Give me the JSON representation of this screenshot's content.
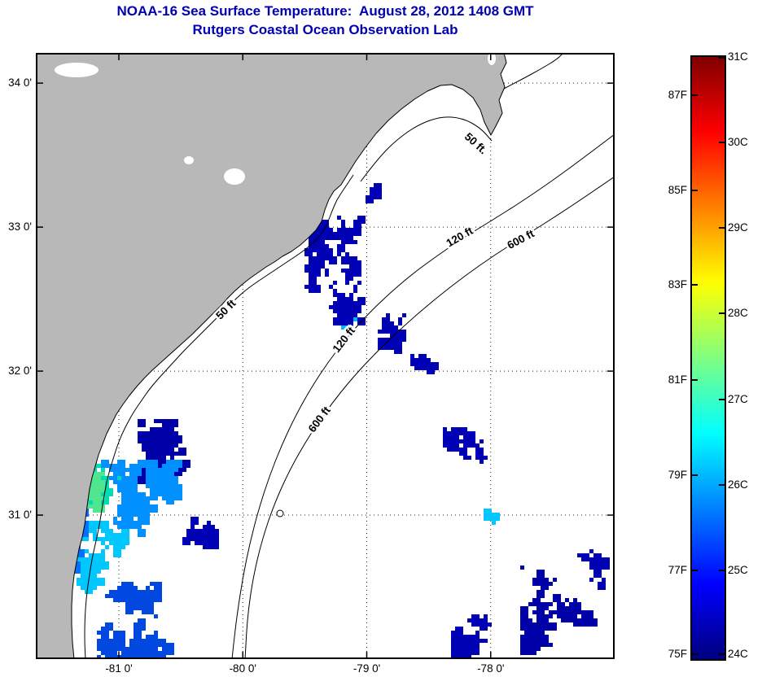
{
  "chart_data": {
    "type": "heatmap",
    "title": "NOAA-16 Sea Surface Temperature:  August 28, 2012 1408 GMT",
    "subtitle": "Rutgers Coastal Ocean Observation Lab",
    "x_axis": {
      "tick_labels": [
        "-81 0'",
        "-80 0'",
        "-79 0'",
        "-78 0'"
      ],
      "tick_lon": [
        -81,
        -80,
        -79,
        -78
      ],
      "lon_range": [
        -81.67,
        -77.0
      ]
    },
    "y_axis": {
      "tick_labels": [
        "34 0'",
        "33 0'",
        "32 0'",
        "31 0'"
      ],
      "tick_lat": [
        34,
        33,
        32,
        31
      ],
      "lat_range": [
        30.0,
        34.21
      ]
    },
    "colorbar": {
      "colormap": "jet",
      "celsius_range": [
        24,
        31
      ],
      "c_ticks": [
        {
          "label": "31C",
          "c": 31
        },
        {
          "label": "30C",
          "c": 30
        },
        {
          "label": "29C",
          "c": 29
        },
        {
          "label": "28C",
          "c": 28
        },
        {
          "label": "27C",
          "c": 27
        },
        {
          "label": "26C",
          "c": 26
        },
        {
          "label": "25C",
          "c": 25
        },
        {
          "label": "24C",
          "c": 24
        }
      ],
      "f_ticks": [
        {
          "label": "87F",
          "f": 87
        },
        {
          "label": "85F",
          "f": 85
        },
        {
          "label": "83F",
          "f": 83
        },
        {
          "label": "81F",
          "f": 81
        },
        {
          "label": "79F",
          "f": 79
        },
        {
          "label": "77F",
          "f": 77
        },
        {
          "label": "75F",
          "f": 75
        }
      ],
      "jet_stops": [
        "#7f0000",
        "#ff0000",
        "#ff8000",
        "#ffff00",
        "#80ff80",
        "#00ffff",
        "#0080ff",
        "#0000ff",
        "#00007f"
      ]
    },
    "depth_contours": [
      {
        "label": "50 ft."
      },
      {
        "label": "120 ft"
      },
      {
        "label": "600 ft"
      },
      {
        "label": "50 ft"
      },
      {
        "label": "120 ft"
      },
      {
        "label": "600 ft"
      }
    ],
    "land_color": "#b8b8b8",
    "sst_patches": [
      {
        "lon": [
          -79.5,
          -79.08
        ],
        "lat": [
          32.5,
          33.08
        ],
        "temp_c": 24.3,
        "color": "#0000b4",
        "steps": 300
      },
      {
        "lon": [
          -79.24,
          -79.1
        ],
        "lat": [
          32.33,
          32.47
        ],
        "temp_c": 26.2,
        "color": "#00b4ff",
        "steps": 45
      },
      {
        "lon": [
          -79.38,
          -79.06
        ],
        "lat": [
          32.28,
          32.52
        ],
        "temp_c": 24.3,
        "color": "#0000b4",
        "steps": 90
      },
      {
        "lon": [
          -78.92,
          -78.5
        ],
        "lat": [
          32.1,
          32.7
        ],
        "temp_c": 24.3,
        "color": "#0000b4",
        "steps": 55
      },
      {
        "lon": [
          -79.02,
          -78.9
        ],
        "lat": [
          33.18,
          33.32
        ],
        "temp_c": 24.3,
        "color": "#0000b4",
        "steps": 18
      },
      {
        "lon": [
          -80.85,
          -80.15
        ],
        "lat": [
          31.22,
          31.68
        ],
        "temp_c": 24.2,
        "color": "#0000a8",
        "steps": 330
      },
      {
        "lon": [
          -81.32,
          -80.55
        ],
        "lat": [
          30.72,
          31.38
        ],
        "temp_c": 25.8,
        "color": "#0090ff",
        "steps": 380
      },
      {
        "lon": [
          -81.42,
          -81.02
        ],
        "lat": [
          30.82,
          31.42
        ],
        "temp_c": 26.9,
        "color": "#00dcb4",
        "steps": 170
      },
      {
        "lon": [
          -81.35,
          -81.15
        ],
        "lat": [
          31.05,
          31.3
        ],
        "temp_c": 27.2,
        "color": "#50e690",
        "steps": 60
      },
      {
        "lon": [
          -81.36,
          -80.92
        ],
        "lat": [
          30.5,
          30.98
        ],
        "temp_c": 26.3,
        "color": "#00c8ff",
        "steps": 220
      },
      {
        "lon": [
          -81.18,
          -80.5
        ],
        "lat": [
          30.02,
          30.55
        ],
        "temp_c": 25.2,
        "color": "#0048e0",
        "steps": 280
      },
      {
        "lon": [
          -81.48,
          -81.3
        ],
        "lat": [
          30.05,
          31.25
        ],
        "temp_c": 25.5,
        "color": "#0070ff",
        "steps": 130
      },
      {
        "lon": [
          -80.62,
          -80.25
        ],
        "lat": [
          30.8,
          31.18
        ],
        "temp_c": 24.3,
        "color": "#0000b4",
        "steps": 100
      },
      {
        "lon": [
          -78.4,
          -78.04
        ],
        "lat": [
          31.22,
          31.62
        ],
        "temp_c": 24.3,
        "color": "#0000b4",
        "steps": 70
      },
      {
        "lon": [
          -78.07,
          -77.97
        ],
        "lat": [
          30.97,
          31.08
        ],
        "temp_c": 26.3,
        "color": "#00c8ff",
        "steps": 16
      },
      {
        "lon": [
          -78.66,
          -78.48
        ],
        "lat": [
          32.02,
          32.22
        ],
        "temp_c": 24.3,
        "color": "#0000b4",
        "steps": 25
      },
      {
        "lon": [
          -77.78,
          -77.16
        ],
        "lat": [
          30.05,
          30.85
        ],
        "temp_c": 24.2,
        "color": "#0000a8",
        "steps": 300
      },
      {
        "lon": [
          -78.32,
          -78.02
        ],
        "lat": [
          30.05,
          30.48
        ],
        "temp_c": 24.3,
        "color": "#0000b4",
        "steps": 140
      },
      {
        "lon": [
          -77.32,
          -77.12
        ],
        "lat": [
          30.52,
          30.76
        ],
        "temp_c": 24.3,
        "color": "#0000b4",
        "steps": 50
      }
    ]
  }
}
